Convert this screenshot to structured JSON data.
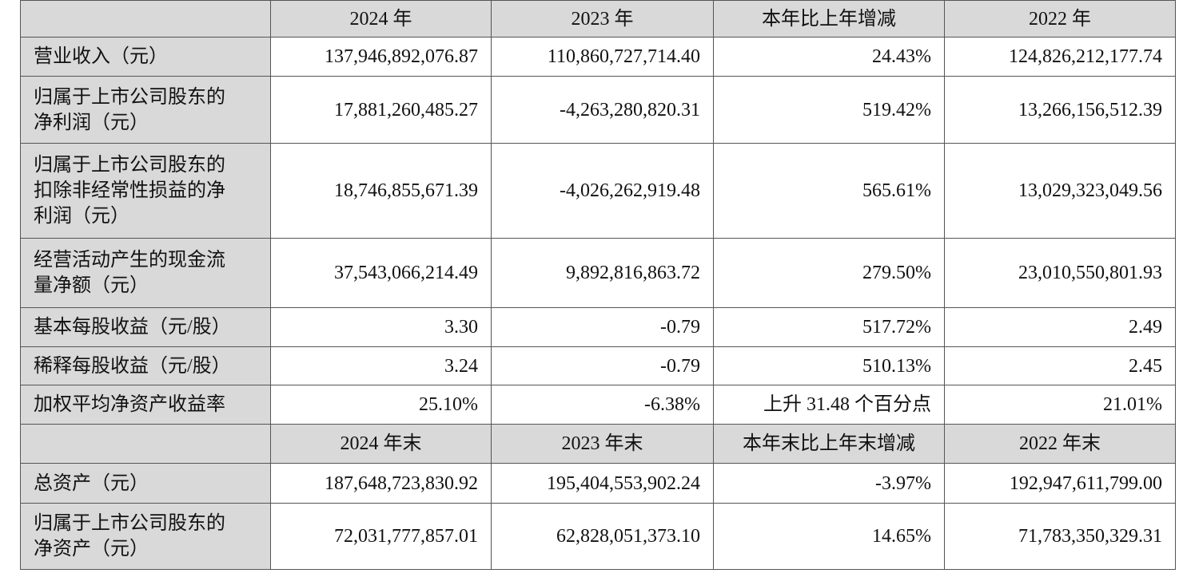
{
  "table": {
    "header": [
      "2024 年",
      "2023 年",
      "本年比上年增减",
      "2022 年"
    ],
    "rows": [
      {
        "label": "营业收入（元）",
        "values": [
          "137,946,892,076.87",
          "110,860,727,714.40",
          "24.43%",
          "124,826,212,177.74"
        ]
      },
      {
        "label": "归属于上市公司股东的净利润（元）",
        "values": [
          "17,881,260,485.27",
          "-4,263,280,820.31",
          "519.42%",
          "13,266,156,512.39"
        ]
      },
      {
        "label": "归属于上市公司股东的扣除非经常性损益的净利润（元）",
        "values": [
          "18,746,855,671.39",
          "-4,026,262,919.48",
          "565.61%",
          "13,029,323,049.56"
        ]
      },
      {
        "label": "经营活动产生的现金流量净额（元）",
        "values": [
          "37,543,066,214.49",
          "9,892,816,863.72",
          "279.50%",
          "23,010,550,801.93"
        ]
      },
      {
        "label": "基本每股收益（元/股）",
        "values": [
          "3.30",
          "-0.79",
          "517.72%",
          "2.49"
        ]
      },
      {
        "label": "稀释每股收益（元/股）",
        "values": [
          "3.24",
          "-0.79",
          "510.13%",
          "2.45"
        ]
      },
      {
        "label": "加权平均净资产收益率",
        "values": [
          "25.10%",
          "-6.38%",
          "上升 31.48 个百分点",
          "21.01%"
        ]
      }
    ],
    "header2": [
      "2024 年末",
      "2023 年末",
      "本年末比上年末增减",
      "2022 年末"
    ],
    "rows2": [
      {
        "label": "总资产（元）",
        "values": [
          "187,648,723,830.92",
          "195,404,553,902.24",
          "-3.97%",
          "192,947,611,799.00"
        ]
      },
      {
        "label": "归属于上市公司股东的净资产（元）",
        "values": [
          "72,031,777,857.01",
          "62,828,051,373.10",
          "14.65%",
          "71,783,350,329.31"
        ]
      }
    ]
  }
}
